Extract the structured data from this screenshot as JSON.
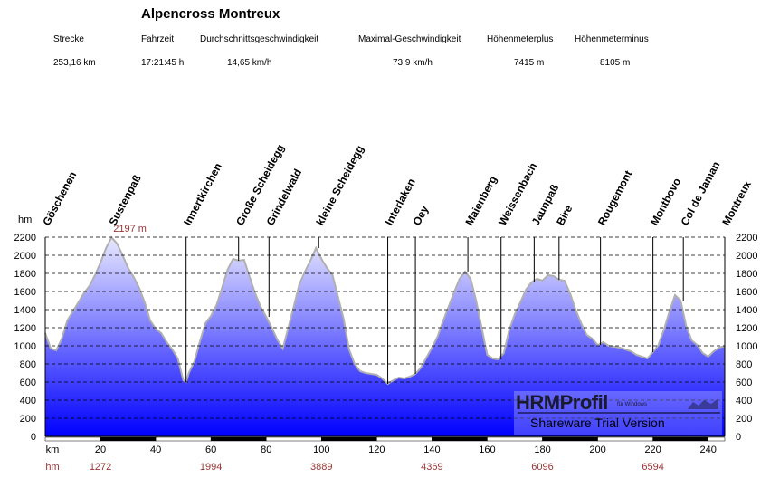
{
  "title": "Alpencross Montreux",
  "stats": {
    "labels": [
      "Strecke",
      "Fahrzeit",
      "Durchschnittsgeschwindigkeit",
      "Maximal-Geschwindigkeit",
      "Höhenmeterplus",
      "Höhenmeterminus"
    ],
    "values": [
      "253,16 km",
      "17:21:45 h",
      "14,65 km/h",
      "73,9 km/h",
      "7415 m",
      "8105 m"
    ]
  },
  "colors": {
    "area_top": "#e8e8ff",
    "area_bottom": "#0000ff",
    "outline": "#b0b0b0",
    "grid": "#000000",
    "red_text": "#993333"
  },
  "chart_data": {
    "type": "area",
    "y_unit": "hm",
    "x_unit": "km",
    "ylim": [
      0,
      2200
    ],
    "xlim": [
      0,
      246
    ],
    "yticks": [
      0,
      200,
      400,
      600,
      800,
      1000,
      1200,
      1400,
      1600,
      1800,
      2000,
      2200
    ],
    "xticks": [
      20,
      40,
      60,
      80,
      100,
      120,
      140,
      160,
      180,
      200,
      220,
      240
    ],
    "max_label": "2197 m",
    "max_point": {
      "x": 24,
      "y": 2197
    },
    "hm_row_label": "hm",
    "hm_values": [
      {
        "x": 20,
        "label": "1272"
      },
      {
        "x": 60,
        "label": "1994"
      },
      {
        "x": 100,
        "label": "3889"
      },
      {
        "x": 140,
        "label": "4369"
      },
      {
        "x": 180,
        "label": "6096"
      },
      {
        "x": 220,
        "label": "6594"
      }
    ],
    "waypoints": [
      {
        "name": "Göschenen",
        "x": 0
      },
      {
        "name": "Sustenpaß",
        "x": 24
      },
      {
        "name": "Innertkirchen",
        "x": 51
      },
      {
        "name": "Große Scheidegg",
        "x": 70
      },
      {
        "name": "Grindelwald",
        "x": 81
      },
      {
        "name": "kleine Scheidegg",
        "x": 99
      },
      {
        "name": "Interlaken",
        "x": 124
      },
      {
        "name": "Oey",
        "x": 134
      },
      {
        "name": "Maienberg",
        "x": 153
      },
      {
        "name": "Weissenbach",
        "x": 165
      },
      {
        "name": "Jaunpaß",
        "x": 177
      },
      {
        "name": "Bire",
        "x": 186
      },
      {
        "name": "Rougemont",
        "x": 201
      },
      {
        "name": "Montbovo",
        "x": 220
      },
      {
        "name": "Col de Jaman",
        "x": 231
      },
      {
        "name": "Montreux",
        "x": 246
      }
    ],
    "profile": [
      [
        0,
        1140
      ],
      [
        2,
        970
      ],
      [
        4,
        950
      ],
      [
        6,
        1080
      ],
      [
        8,
        1280
      ],
      [
        10,
        1380
      ],
      [
        12,
        1480
      ],
      [
        14,
        1580
      ],
      [
        16,
        1660
      ],
      [
        18,
        1780
      ],
      [
        20,
        1920
      ],
      [
        22,
        2080
      ],
      [
        24,
        2197
      ],
      [
        26,
        2130
      ],
      [
        28,
        2000
      ],
      [
        30,
        1860
      ],
      [
        32,
        1760
      ],
      [
        34,
        1640
      ],
      [
        36,
        1480
      ],
      [
        38,
        1280
      ],
      [
        40,
        1190
      ],
      [
        42,
        1140
      ],
      [
        44,
        1040
      ],
      [
        46,
        960
      ],
      [
        48,
        860
      ],
      [
        50,
        620
      ],
      [
        51,
        600
      ],
      [
        52,
        700
      ],
      [
        54,
        830
      ],
      [
        56,
        1050
      ],
      [
        58,
        1250
      ],
      [
        60,
        1330
      ],
      [
        62,
        1450
      ],
      [
        64,
        1640
      ],
      [
        66,
        1840
      ],
      [
        68,
        1960
      ],
      [
        70,
        1940
      ],
      [
        72,
        1950
      ],
      [
        74,
        1760
      ],
      [
        76,
        1580
      ],
      [
        78,
        1430
      ],
      [
        80,
        1320
      ],
      [
        82,
        1200
      ],
      [
        84,
        1070
      ],
      [
        86,
        970
      ],
      [
        88,
        1200
      ],
      [
        90,
        1440
      ],
      [
        92,
        1680
      ],
      [
        94,
        1820
      ],
      [
        96,
        1940
      ],
      [
        98,
        2080
      ],
      [
        100,
        1960
      ],
      [
        102,
        1860
      ],
      [
        104,
        1780
      ],
      [
        106,
        1540
      ],
      [
        108,
        1300
      ],
      [
        110,
        960
      ],
      [
        112,
        800
      ],
      [
        114,
        720
      ],
      [
        116,
        700
      ],
      [
        118,
        690
      ],
      [
        120,
        680
      ],
      [
        122,
        640
      ],
      [
        124,
        580
      ],
      [
        126,
        620
      ],
      [
        128,
        650
      ],
      [
        130,
        640
      ],
      [
        132,
        660
      ],
      [
        134,
        690
      ],
      [
        136,
        760
      ],
      [
        138,
        870
      ],
      [
        140,
        980
      ],
      [
        142,
        1100
      ],
      [
        144,
        1270
      ],
      [
        146,
        1430
      ],
      [
        148,
        1590
      ],
      [
        150,
        1740
      ],
      [
        152,
        1820
      ],
      [
        154,
        1740
      ],
      [
        156,
        1500
      ],
      [
        158,
        1200
      ],
      [
        160,
        900
      ],
      [
        162,
        860
      ],
      [
        164,
        850
      ],
      [
        166,
        920
      ],
      [
        168,
        1180
      ],
      [
        170,
        1350
      ],
      [
        172,
        1480
      ],
      [
        174,
        1620
      ],
      [
        176,
        1700
      ],
      [
        178,
        1740
      ],
      [
        180,
        1720
      ],
      [
        182,
        1780
      ],
      [
        184,
        1770
      ],
      [
        186,
        1730
      ],
      [
        188,
        1720
      ],
      [
        190,
        1580
      ],
      [
        192,
        1400
      ],
      [
        194,
        1250
      ],
      [
        196,
        1120
      ],
      [
        198,
        1080
      ],
      [
        200,
        1010
      ],
      [
        202,
        1040
      ],
      [
        204,
        1000
      ],
      [
        206,
        990
      ],
      [
        208,
        980
      ],
      [
        210,
        960
      ],
      [
        212,
        940
      ],
      [
        214,
        900
      ],
      [
        216,
        880
      ],
      [
        218,
        860
      ],
      [
        220,
        930
      ],
      [
        222,
        1010
      ],
      [
        224,
        1180
      ],
      [
        226,
        1380
      ],
      [
        228,
        1560
      ],
      [
        230,
        1500
      ],
      [
        232,
        1220
      ],
      [
        234,
        1060
      ],
      [
        236,
        1010
      ],
      [
        238,
        920
      ],
      [
        240,
        880
      ],
      [
        242,
        940
      ],
      [
        244,
        980
      ],
      [
        246,
        1000
      ]
    ]
  },
  "watermark": {
    "brand": "HRMProfil",
    "brand_sub": "für Windows",
    "line2": "Shareware Trial  Version"
  }
}
